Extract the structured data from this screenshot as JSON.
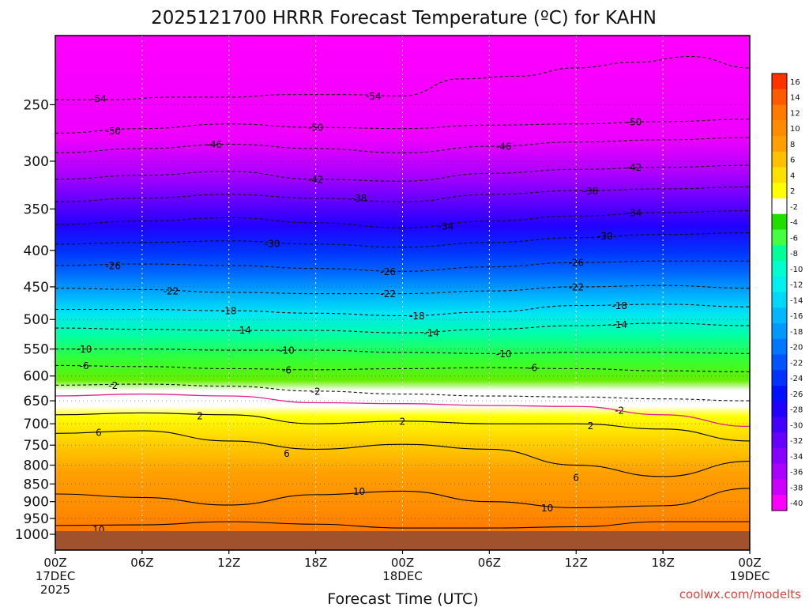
{
  "chart_data": {
    "type": "heatmap",
    "title": "2025121700 HRRR Forecast Temperature (ºC) for KAHN",
    "xlabel": "Forecast Time (UTC)",
    "credit": "coolwx.com/modelts",
    "x_ticks": [
      {
        "hours": 0,
        "lines": [
          "00Z",
          "17DEC",
          "2025"
        ]
      },
      {
        "hours": 6,
        "lines": [
          "06Z"
        ]
      },
      {
        "hours": 12,
        "lines": [
          "12Z"
        ]
      },
      {
        "hours": 18,
        "lines": [
          "18Z"
        ]
      },
      {
        "hours": 24,
        "lines": [
          "00Z",
          "18DEC"
        ]
      },
      {
        "hours": 30,
        "lines": [
          "06Z"
        ]
      },
      {
        "hours": 36,
        "lines": [
          "12Z"
        ]
      },
      {
        "hours": 42,
        "lines": [
          "18Z"
        ]
      },
      {
        "hours": 48,
        "lines": [
          "00Z",
          "19DEC"
        ]
      }
    ],
    "xlim": [
      0,
      48
    ],
    "y_ticks": [
      250,
      300,
      350,
      400,
      450,
      500,
      550,
      600,
      650,
      700,
      750,
      800,
      850,
      900,
      950,
      1000
    ],
    "ylim": [
      200,
      1000
    ],
    "ground_color": "#a0522d",
    "colorbar": {
      "labels": [
        "16",
        "14",
        "12",
        "10",
        "8",
        "6",
        "4",
        "2",
        "-2",
        "-4",
        "-6",
        "-8",
        "-10",
        "-12",
        "-14",
        "-16",
        "-18",
        "-20",
        "-22",
        "-24",
        "-26",
        "-28",
        "-30",
        "-32",
        "-34",
        "-36",
        "-38",
        "-40"
      ],
      "colors": [
        "#ff3300",
        "#ff5a00",
        "#ff7a00",
        "#ff8c00",
        "#ffa000",
        "#ffc000",
        "#ffe000",
        "#ffff00",
        "#ffffff",
        "#22dd00",
        "#44ff44",
        "#00ff99",
        "#00ffcc",
        "#00f0f0",
        "#00d8f8",
        "#00b8ff",
        "#0099ff",
        "#0077ff",
        "#0055ff",
        "#0033ff",
        "#0011ff",
        "#2200ff",
        "#4400ff",
        "#6600ff",
        "#8800ff",
        "#aa00ff",
        "#cc00ff",
        "#ff00ff"
      ]
    },
    "contours": [
      {
        "label": "-54",
        "x": [
          0,
          4,
          8,
          12,
          16,
          20,
          24,
          28,
          32,
          36,
          40,
          44,
          48
        ],
        "p": [
          246,
          246,
          244,
          244,
          242,
          242,
          243,
          230,
          228,
          222,
          218,
          214,
          222
        ],
        "label_at": [
          [
            3,
            245
          ],
          [
            22,
            243
          ]
        ]
      },
      {
        "label": "-50",
        "x": [
          0,
          6,
          12,
          18,
          24,
          30,
          36,
          42,
          48
        ],
        "p": [
          274,
          270,
          266,
          269,
          270,
          267,
          266,
          264,
          262
        ],
        "label_at": [
          [
            4,
            272
          ],
          [
            18,
            269
          ],
          [
            40,
            264
          ]
        ]
      },
      {
        "label": "-46",
        "x": [
          0,
          6,
          12,
          18,
          24,
          30,
          36,
          42,
          48
        ],
        "p": [
          292,
          288,
          284,
          288,
          292,
          286,
          282,
          280,
          278
        ],
        "label_at": [
          [
            11,
            284
          ],
          [
            31,
            286
          ]
        ]
      },
      {
        "label": "-42",
        "x": [
          0,
          6,
          12,
          18,
          24,
          30,
          36,
          42,
          48
        ],
        "p": [
          318,
          314,
          310,
          318,
          320,
          312,
          308,
          306,
          304
        ],
        "label_at": [
          [
            18,
            318
          ],
          [
            40,
            306
          ]
        ]
      },
      {
        "label": "-38",
        "x": [
          0,
          6,
          12,
          18,
          24,
          30,
          36,
          42,
          48
        ],
        "p": [
          342,
          338,
          334,
          338,
          342,
          334,
          330,
          328,
          326
        ],
        "label_at": [
          [
            21,
            338
          ],
          [
            37,
            330
          ]
        ]
      },
      {
        "label": "-34",
        "x": [
          0,
          6,
          12,
          18,
          24,
          30,
          36,
          42,
          48
        ],
        "p": [
          368,
          364,
          360,
          366,
          372,
          364,
          358,
          354,
          352
        ],
        "label_at": [
          [
            27,
            370
          ],
          [
            40,
            354
          ]
        ]
      },
      {
        "label": "-30",
        "x": [
          0,
          6,
          12,
          18,
          24,
          30,
          36,
          42,
          48
        ],
        "p": [
          392,
          390,
          388,
          392,
          396,
          390,
          384,
          380,
          378
        ],
        "label_at": [
          [
            15,
            391
          ],
          [
            38,
            382
          ]
        ]
      },
      {
        "label": "-26",
        "x": [
          0,
          6,
          12,
          18,
          24,
          30,
          36,
          42,
          48
        ],
        "p": [
          420,
          418,
          420,
          424,
          428,
          422,
          416,
          414,
          414
        ],
        "label_at": [
          [
            4,
            420
          ],
          [
            23,
            428
          ],
          [
            36,
            416
          ]
        ]
      },
      {
        "label": "-22",
        "x": [
          0,
          6,
          12,
          18,
          24,
          30,
          36,
          42,
          48
        ],
        "p": [
          452,
          454,
          458,
          460,
          460,
          456,
          450,
          448,
          452
        ],
        "label_at": [
          [
            8,
            456
          ],
          [
            23,
            460
          ],
          [
            36,
            450
          ]
        ]
      },
      {
        "label": "-18",
        "x": [
          0,
          6,
          12,
          18,
          24,
          30,
          36,
          42,
          48
        ],
        "p": [
          484,
          484,
          486,
          490,
          494,
          488,
          478,
          476,
          480
        ],
        "label_at": [
          [
            12,
            486
          ],
          [
            25,
            494
          ],
          [
            39,
            478
          ]
        ]
      },
      {
        "label": "-14",
        "x": [
          0,
          6,
          12,
          18,
          24,
          30,
          36,
          42,
          48
        ],
        "p": [
          514,
          516,
          518,
          518,
          522,
          516,
          510,
          506,
          510
        ],
        "label_at": [
          [
            13,
            517
          ],
          [
            26,
            522
          ],
          [
            39,
            508
          ]
        ]
      },
      {
        "label": "-10",
        "x": [
          0,
          6,
          12,
          18,
          24,
          30,
          36,
          42,
          48
        ],
        "p": [
          550,
          550,
          552,
          552,
          556,
          558,
          556,
          556,
          558
        ],
        "label_at": [
          [
            2,
            550
          ],
          [
            16,
            552
          ],
          [
            31,
            558
          ]
        ]
      },
      {
        "label": "-6",
        "x": [
          0,
          6,
          12,
          18,
          24,
          30,
          36,
          42,
          48
        ],
        "p": [
          580,
          582,
          586,
          588,
          586,
          584,
          586,
          590,
          592
        ],
        "label_at": [
          [
            2,
            580
          ],
          [
            16,
            588
          ],
          [
            33,
            584
          ]
        ]
      },
      {
        "label": "-2",
        "x": [
          0,
          6,
          12,
          18,
          24,
          30,
          36,
          42,
          48
        ],
        "p": [
          618,
          616,
          620,
          630,
          636,
          640,
          642,
          646,
          650
        ],
        "label_at": [
          [
            4,
            618
          ],
          [
            18,
            630
          ],
          [
            39,
            670
          ]
        ]
      }
    ],
    "contours_solid": [
      {
        "label": "2",
        "x": [
          0,
          6,
          12,
          18,
          24,
          30,
          36,
          42,
          48
        ],
        "p": [
          680,
          676,
          680,
          700,
          694,
          700,
          700,
          712,
          740
        ],
        "label_at": [
          [
            10,
            682
          ],
          [
            24,
            694
          ],
          [
            37,
            704
          ]
        ]
      },
      {
        "label": "6",
        "x": [
          0,
          6,
          12,
          18,
          24,
          30,
          36,
          42,
          48
        ],
        "p": [
          722,
          716,
          740,
          760,
          748,
          760,
          800,
          830,
          790
        ],
        "label_at": [
          [
            3,
            720
          ],
          [
            16,
            770
          ],
          [
            36,
            832
          ]
        ]
      },
      {
        "label": "10",
        "x": [
          0,
          6,
          12,
          18,
          24,
          30,
          36,
          42,
          48
        ],
        "p": [
          878,
          888,
          910,
          880,
          870,
          900,
          918,
          912,
          862
        ],
        "label_at": [
          [
            21,
            870
          ],
          [
            34,
            918
          ]
        ]
      },
      {
        "label": "10",
        "x": [
          0,
          6,
          12,
          18,
          24,
          30,
          36,
          42,
          48
        ],
        "p": [
          972,
          970,
          960,
          968,
          980,
          980,
          976,
          960,
          960
        ],
        "label_at": [
          [
            3,
            985
          ]
        ]
      }
    ]
  }
}
